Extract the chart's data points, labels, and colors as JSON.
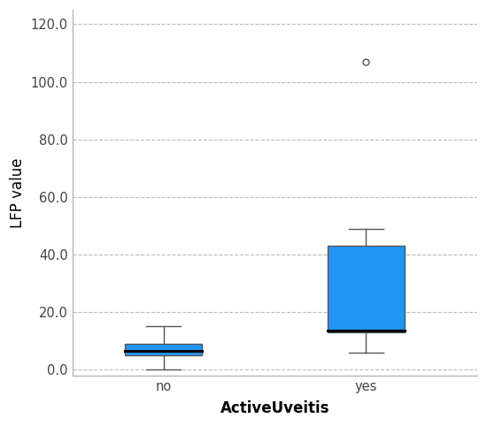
{
  "categories": [
    "no",
    "yes"
  ],
  "boxes": [
    {
      "label": "no",
      "q1": 5.0,
      "median": 6.5,
      "q3": 9.0,
      "whisker_low": 0.0,
      "whisker_high": 15.0,
      "outliers": []
    },
    {
      "label": "yes",
      "q1": 13.0,
      "median": 13.5,
      "q3": 43.0,
      "whisker_low": 6.0,
      "whisker_high": 49.0,
      "outliers": [
        107.0
      ]
    }
  ],
  "ylim": [
    -2,
    125
  ],
  "yticks": [
    0.0,
    20.0,
    40.0,
    60.0,
    80.0,
    100.0,
    120.0
  ],
  "ylabel": "LFP value",
  "xlabel": "ActiveUveitis",
  "box_color": "#2196F3",
  "median_color": "#000000",
  "whisker_color": "#555555",
  "outlier_color": "#555555",
  "background_color": "#ffffff",
  "grid_color": "#bbbbbb",
  "spine_color": "#aaaaaa",
  "box_width": 0.38,
  "cap_ratio": 0.45,
  "ylabel_fontsize": 12,
  "xlabel_fontsize": 12,
  "tick_fontsize": 10.5,
  "figsize": [
    5.5,
    4.82
  ],
  "dpi": 100
}
